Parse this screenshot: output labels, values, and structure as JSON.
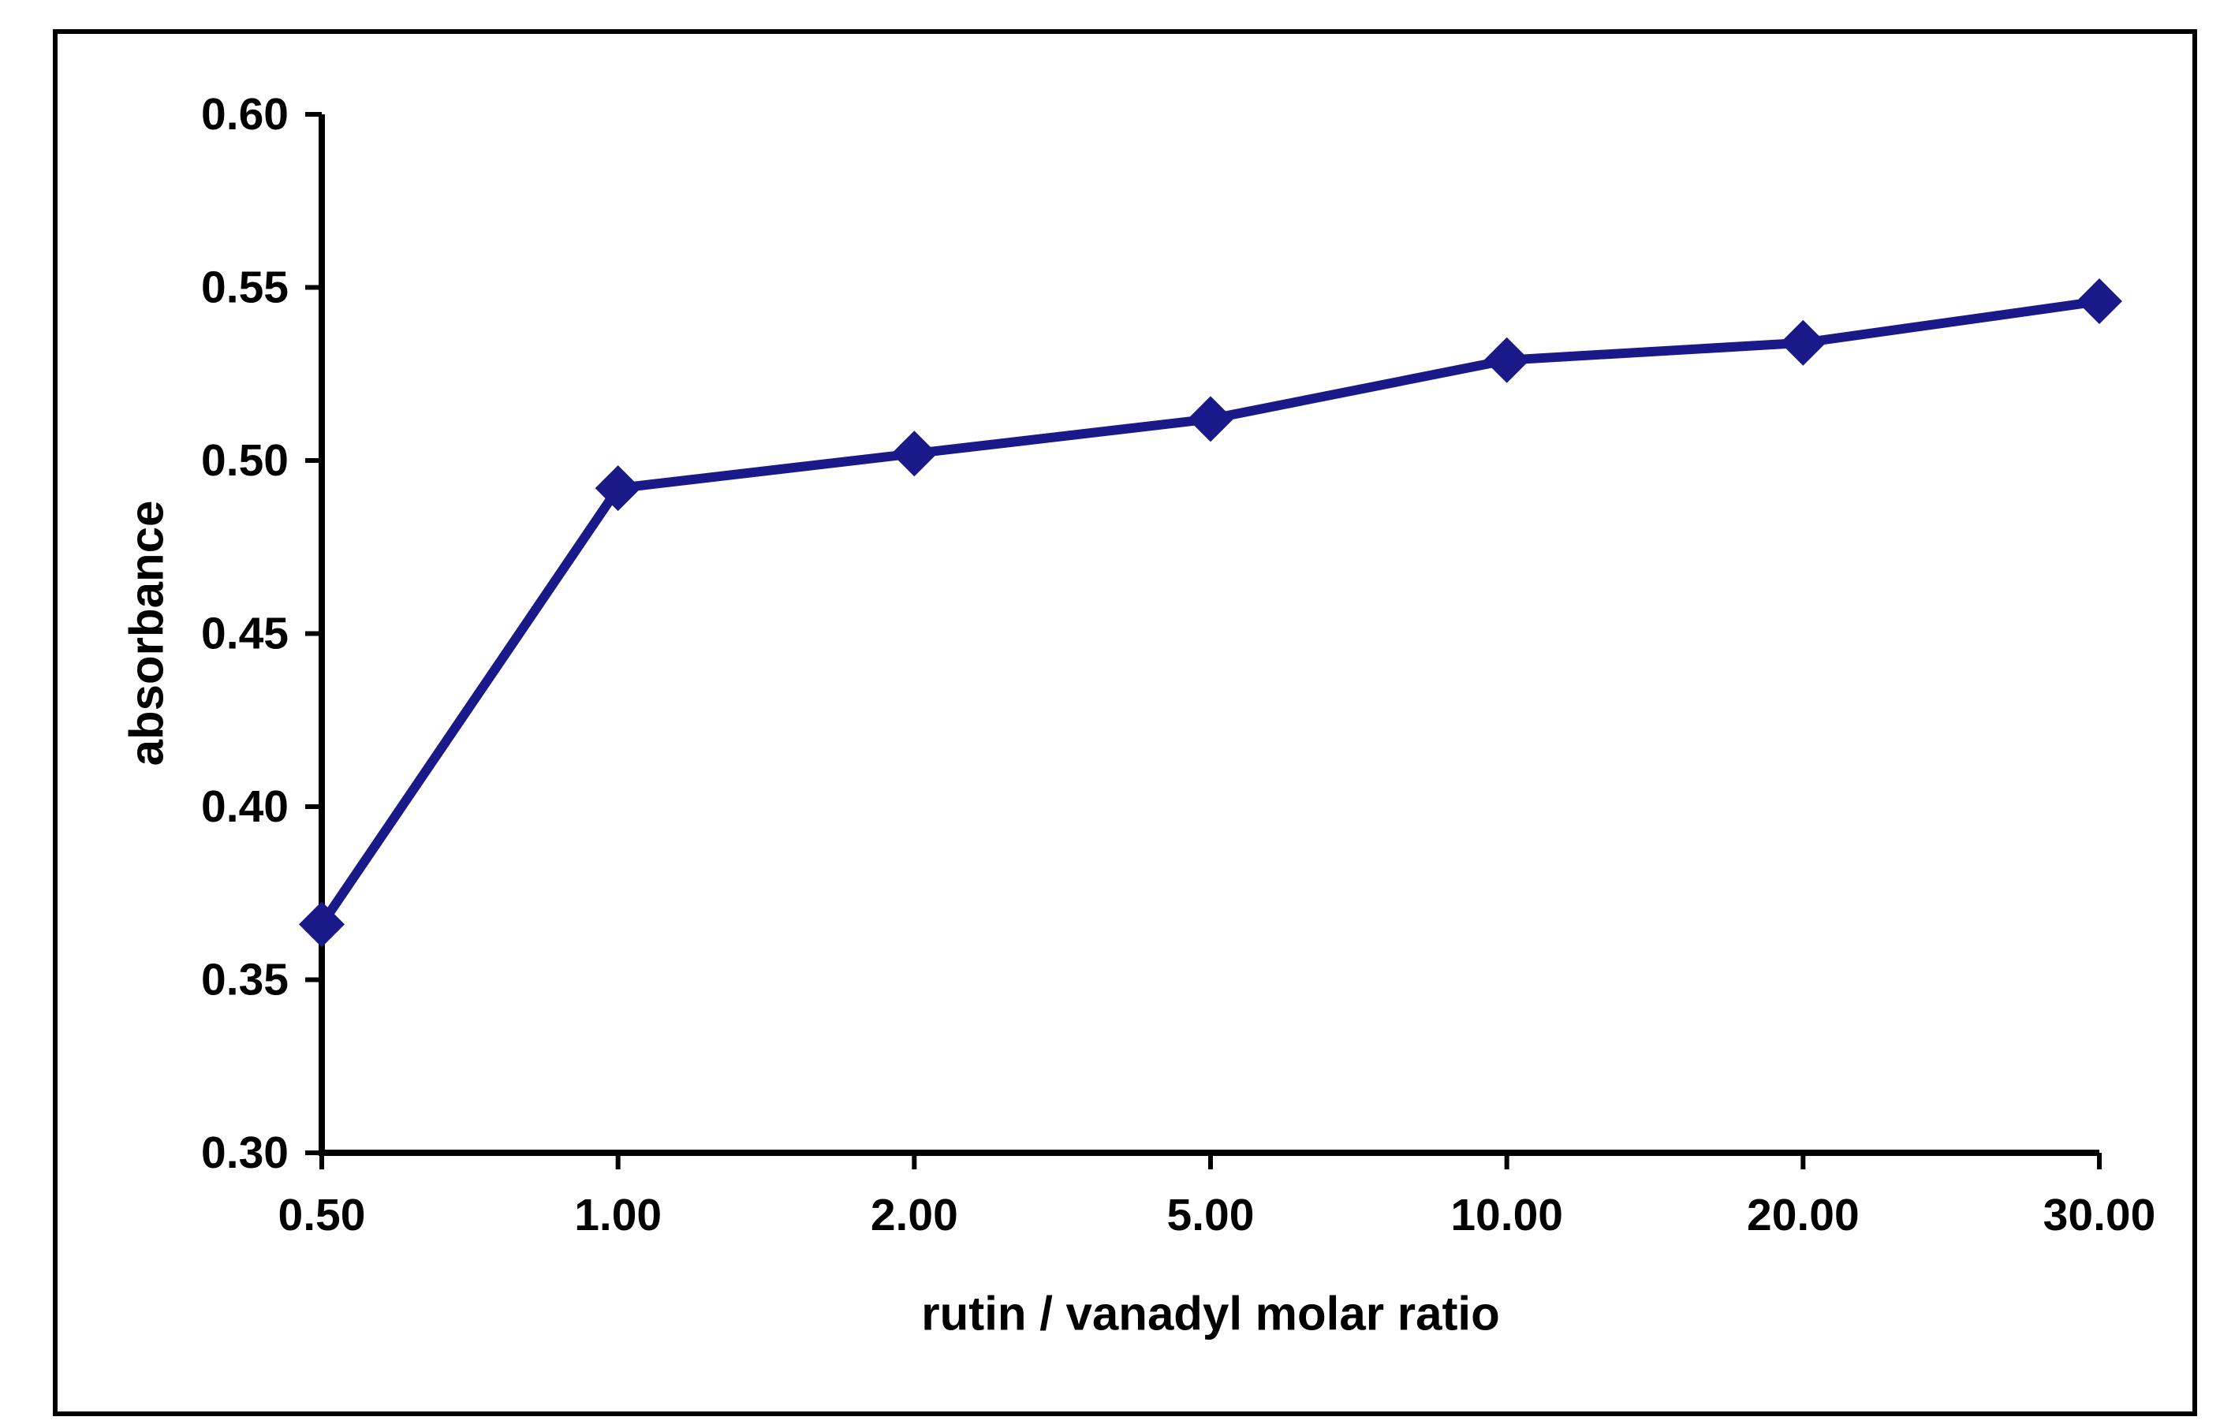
{
  "figure": {
    "background_color": "#ffffff",
    "border_color": "#000000"
  },
  "chart_data": {
    "type": "line",
    "title": "",
    "xlabel": "rutin / vanadyl molar ratio",
    "ylabel": "absorbance",
    "categories": [
      "0.50",
      "1.00",
      "2.00",
      "5.00",
      "10.00",
      "20.00",
      "30.00"
    ],
    "series": [
      {
        "name": "absorbance",
        "values": [
          0.366,
          0.492,
          0.502,
          0.512,
          0.529,
          0.534,
          0.546
        ],
        "color": "#191989",
        "marker": "diamond"
      }
    ],
    "ylim": [
      0.3,
      0.6
    ],
    "yticks": [
      0.3,
      0.35,
      0.4,
      0.45,
      0.5,
      0.55,
      0.6
    ],
    "ytick_labels": [
      "0.30",
      "0.35",
      "0.40",
      "0.45",
      "0.50",
      "0.55",
      "0.60"
    ],
    "grid": false,
    "legend": "none",
    "axis_color": "#000000",
    "tick_label_color": "#000000"
  }
}
